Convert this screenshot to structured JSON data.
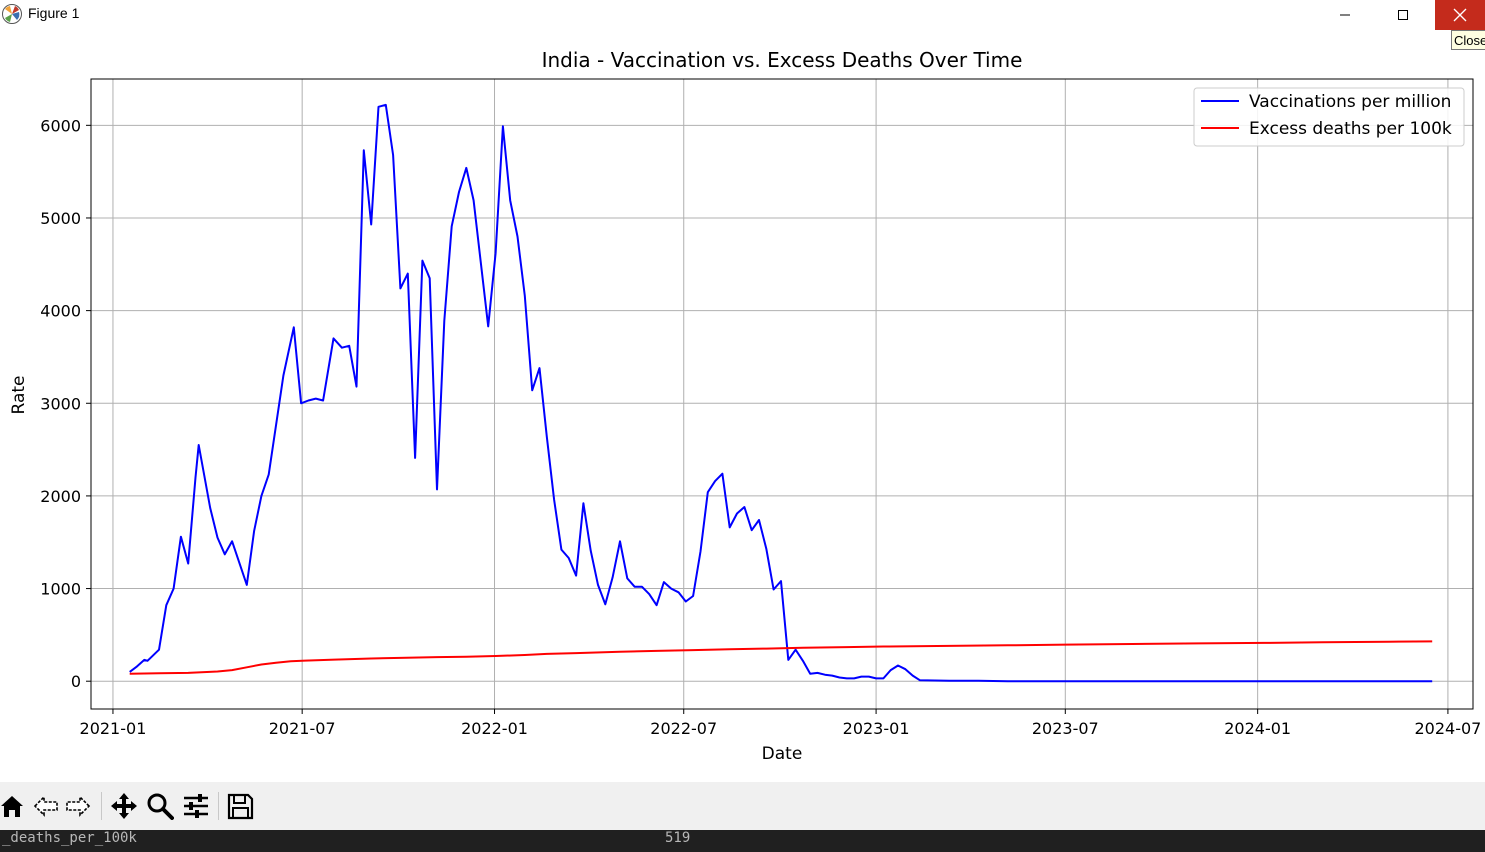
{
  "window": {
    "title": "Figure 1",
    "close_tooltip": "Close"
  },
  "toolbar": {
    "buttons": [
      {
        "name": "home-icon"
      },
      {
        "name": "back-icon"
      },
      {
        "name": "forward-icon"
      },
      {
        "name": "pan-icon"
      },
      {
        "name": "zoom-icon"
      },
      {
        "name": "configure-subplots-icon"
      },
      {
        "name": "save-icon"
      }
    ]
  },
  "status": {
    "left_text": "_deaths_per_100k",
    "right_text": "519"
  },
  "chart_data": {
    "type": "line",
    "title": "India - Vaccination vs. Excess Deaths Over Time",
    "xlabel": "Date",
    "ylabel": "Rate",
    "xlim": [
      "2020-12-11",
      "2024-07-25"
    ],
    "ylim": [
      -300,
      6500
    ],
    "grid": true,
    "legend_position": "top-right",
    "x_ticks": [
      "2021-01",
      "2021-07",
      "2022-01",
      "2022-07",
      "2023-01",
      "2023-07",
      "2024-01",
      "2024-07"
    ],
    "x_tick_dates": [
      "2021-01-01",
      "2021-07-01",
      "2022-01-01",
      "2022-07-01",
      "2023-01-01",
      "2023-07-01",
      "2024-01-01",
      "2024-07-01"
    ],
    "y_ticks": [
      0,
      1000,
      2000,
      3000,
      4000,
      5000,
      6000
    ],
    "series": [
      {
        "name": "Vaccinations per million",
        "color": "#0000ff",
        "points": [
          [
            "2021-01-17",
            100
          ],
          [
            "2021-01-24",
            160
          ],
          [
            "2021-01-31",
            230
          ],
          [
            "2021-02-03",
            220
          ],
          [
            "2021-02-14",
            340
          ],
          [
            "2021-02-21",
            820
          ],
          [
            "2021-02-28",
            1000
          ],
          [
            "2021-03-07",
            1560
          ],
          [
            "2021-03-14",
            1270
          ],
          [
            "2021-03-21",
            2200
          ],
          [
            "2021-03-24",
            2550
          ],
          [
            "2021-04-04",
            1870
          ],
          [
            "2021-04-11",
            1550
          ],
          [
            "2021-04-18",
            1370
          ],
          [
            "2021-04-25",
            1510
          ],
          [
            "2021-05-09",
            1040
          ],
          [
            "2021-05-16",
            1620
          ],
          [
            "2021-05-23",
            2000
          ],
          [
            "2021-05-30",
            2230
          ],
          [
            "2021-06-13",
            3300
          ],
          [
            "2021-06-23",
            3820
          ],
          [
            "2021-06-30",
            3000
          ],
          [
            "2021-07-07",
            3030
          ],
          [
            "2021-07-14",
            3050
          ],
          [
            "2021-07-21",
            3030
          ],
          [
            "2021-07-31",
            3700
          ],
          [
            "2021-08-08",
            3600
          ],
          [
            "2021-08-15",
            3620
          ],
          [
            "2021-08-22",
            3180
          ],
          [
            "2021-08-29",
            5730
          ],
          [
            "2021-09-05",
            4930
          ],
          [
            "2021-09-12",
            6200
          ],
          [
            "2021-09-19",
            6220
          ],
          [
            "2021-09-26",
            5680
          ],
          [
            "2021-10-03",
            4240
          ],
          [
            "2021-10-10",
            4400
          ],
          [
            "2021-10-17",
            2410
          ],
          [
            "2021-10-24",
            4540
          ],
          [
            "2021-10-31",
            4350
          ],
          [
            "2021-11-07",
            2070
          ],
          [
            "2021-11-14",
            3890
          ],
          [
            "2021-11-21",
            4910
          ],
          [
            "2021-11-28",
            5280
          ],
          [
            "2021-12-05",
            5540
          ],
          [
            "2021-12-12",
            5190
          ],
          [
            "2021-12-26",
            3830
          ],
          [
            "2022-01-02",
            4620
          ],
          [
            "2022-01-09",
            5990
          ],
          [
            "2022-01-16",
            5190
          ],
          [
            "2022-01-23",
            4800
          ],
          [
            "2022-01-30",
            4160
          ],
          [
            "2022-02-06",
            3140
          ],
          [
            "2022-02-13",
            3380
          ],
          [
            "2022-02-20",
            2640
          ],
          [
            "2022-02-27",
            1960
          ],
          [
            "2022-03-06",
            1420
          ],
          [
            "2022-03-13",
            1330
          ],
          [
            "2022-03-20",
            1140
          ],
          [
            "2022-03-27",
            1920
          ],
          [
            "2022-04-03",
            1410
          ],
          [
            "2022-04-10",
            1040
          ],
          [
            "2022-04-17",
            830
          ],
          [
            "2022-04-24",
            1120
          ],
          [
            "2022-05-01",
            1510
          ],
          [
            "2022-05-08",
            1110
          ],
          [
            "2022-05-15",
            1020
          ],
          [
            "2022-05-22",
            1020
          ],
          [
            "2022-05-29",
            940
          ],
          [
            "2022-06-05",
            820
          ],
          [
            "2022-06-12",
            1070
          ],
          [
            "2022-06-19",
            1000
          ],
          [
            "2022-06-26",
            960
          ],
          [
            "2022-07-03",
            860
          ],
          [
            "2022-07-10",
            920
          ],
          [
            "2022-07-17",
            1400
          ],
          [
            "2022-07-24",
            2040
          ],
          [
            "2022-07-31",
            2160
          ],
          [
            "2022-08-07",
            2240
          ],
          [
            "2022-08-14",
            1660
          ],
          [
            "2022-08-21",
            1810
          ],
          [
            "2022-08-28",
            1880
          ],
          [
            "2022-09-04",
            1630
          ],
          [
            "2022-09-11",
            1740
          ],
          [
            "2022-09-18",
            1430
          ],
          [
            "2022-09-25",
            990
          ],
          [
            "2022-10-02",
            1080
          ],
          [
            "2022-10-09",
            230
          ],
          [
            "2022-10-16",
            340
          ],
          [
            "2022-10-23",
            220
          ],
          [
            "2022-10-30",
            80
          ],
          [
            "2022-11-06",
            90
          ],
          [
            "2022-11-13",
            70
          ],
          [
            "2022-11-20",
            60
          ],
          [
            "2022-11-27",
            40
          ],
          [
            "2022-12-04",
            30
          ],
          [
            "2022-12-11",
            30
          ],
          [
            "2022-12-18",
            50
          ],
          [
            "2022-12-25",
            50
          ],
          [
            "2023-01-01",
            30
          ],
          [
            "2023-01-08",
            30
          ],
          [
            "2023-01-15",
            120
          ],
          [
            "2023-01-22",
            170
          ],
          [
            "2023-01-29",
            130
          ],
          [
            "2023-02-05",
            60
          ],
          [
            "2023-02-12",
            10
          ],
          [
            "2023-03-12",
            5
          ],
          [
            "2023-04-09",
            5
          ],
          [
            "2023-05-07",
            0
          ],
          [
            "2023-06-04",
            0
          ],
          [
            "2023-07-02",
            0
          ],
          [
            "2023-09-03",
            0
          ],
          [
            "2023-11-05",
            0
          ],
          [
            "2024-01-07",
            0
          ],
          [
            "2024-03-03",
            0
          ],
          [
            "2024-05-05",
            0
          ],
          [
            "2024-06-16",
            0
          ]
        ]
      },
      {
        "name": "Excess deaths per 100k",
        "color": "#ff0000",
        "points": [
          [
            "2021-01-17",
            80
          ],
          [
            "2021-02-14",
            85
          ],
          [
            "2021-03-14",
            90
          ],
          [
            "2021-04-11",
            105
          ],
          [
            "2021-04-25",
            120
          ],
          [
            "2021-05-09",
            150
          ],
          [
            "2021-05-23",
            180
          ],
          [
            "2021-06-06",
            200
          ],
          [
            "2021-06-20",
            215
          ],
          [
            "2021-07-04",
            222
          ],
          [
            "2021-08-01",
            233
          ],
          [
            "2021-09-05",
            245
          ],
          [
            "2021-10-03",
            252
          ],
          [
            "2021-11-07",
            260
          ],
          [
            "2021-12-05",
            265
          ],
          [
            "2022-01-02",
            272
          ],
          [
            "2022-01-30",
            283
          ],
          [
            "2022-02-20",
            295
          ],
          [
            "2022-03-20",
            303
          ],
          [
            "2022-05-01",
            317
          ],
          [
            "2022-06-05",
            327
          ],
          [
            "2022-07-10",
            336
          ],
          [
            "2022-08-14",
            345
          ],
          [
            "2022-09-18",
            352
          ],
          [
            "2022-10-23",
            362
          ],
          [
            "2022-12-04",
            368
          ],
          [
            "2023-01-08",
            375
          ],
          [
            "2023-03-12",
            381
          ],
          [
            "2023-05-07",
            388
          ],
          [
            "2023-07-02",
            395
          ],
          [
            "2023-09-03",
            402
          ],
          [
            "2023-11-05",
            408
          ],
          [
            "2024-01-07",
            414
          ],
          [
            "2024-03-03",
            421
          ],
          [
            "2024-05-05",
            426
          ],
          [
            "2024-06-16",
            430
          ]
        ]
      }
    ]
  }
}
